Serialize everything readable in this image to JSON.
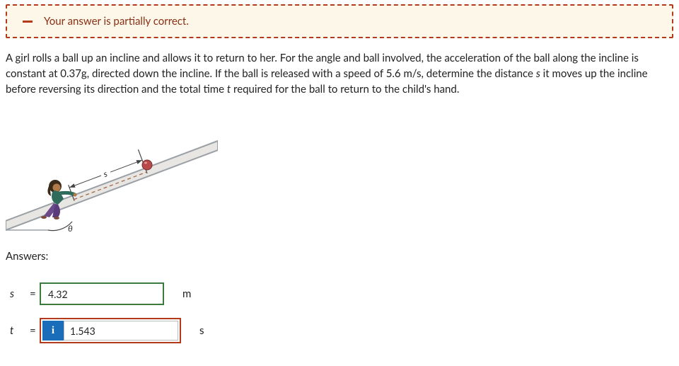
{
  "feedback": {
    "text": "Your answer is partially correct.",
    "border_color": "#b33a1a",
    "bg_color": "#fdf7ea",
    "text_color": "#8a2f14"
  },
  "question": {
    "html": "A girl rolls a ball up an incline and allows it to return to her. For the angle and ball involved, the acceleration of the ball along the incline is constant at 0.37g, directed down the incline. If the ball is released with a speed of 5.6 m/s, determine the distance <i>s</i> it moves up the incline before reversing its direction and the total time <i>t</i> required for the ball to return to the child's hand."
  },
  "diagram": {
    "incline_color": "#9aa0a6",
    "incline_fill": "#e8e6e2",
    "ball_color": "#b94a4a",
    "girl_skin": "#b07a4a",
    "girl_shirt": "#2e6b5a",
    "girl_pants": "#6b4a8a",
    "girl_hair": "#3a2a1a",
    "s_label": "s",
    "theta_label": "θ"
  },
  "answers": {
    "heading": "Answers:",
    "rows": [
      {
        "var": "s",
        "value": "4.32",
        "unit": "m",
        "correct": true
      },
      {
        "var": "t",
        "value": "1.543",
        "unit": "s",
        "correct": false
      }
    ],
    "info_glyph": "i",
    "correct_border": "#3d7a3d",
    "wrong_border": "#b33a1a",
    "info_bg": "#1a6db8"
  }
}
